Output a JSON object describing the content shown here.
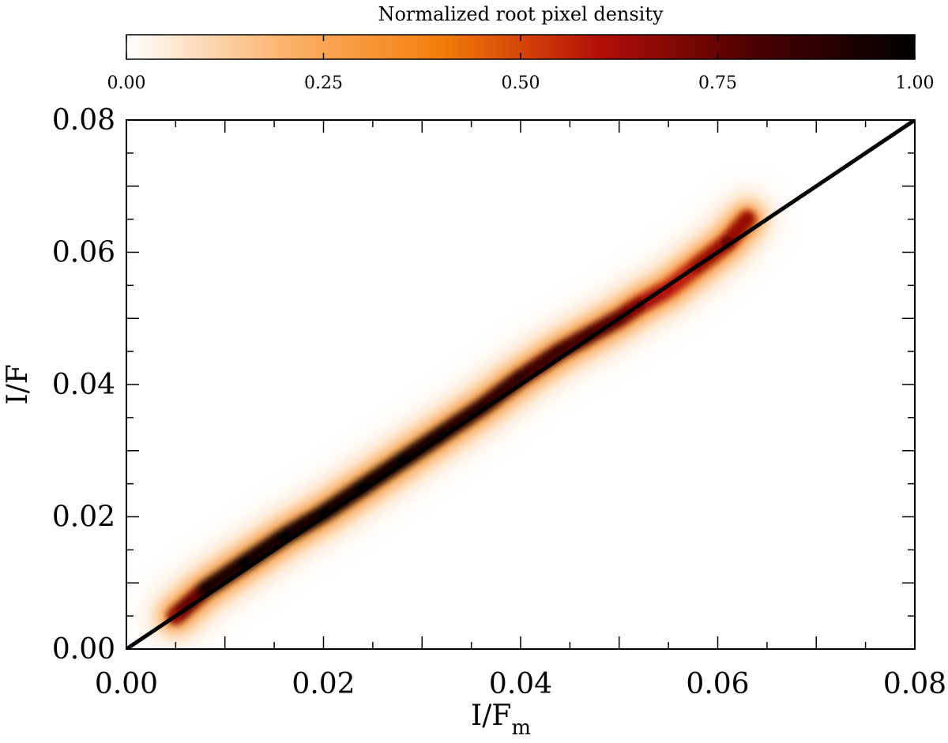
{
  "chart_data": {
    "type": "heatmap",
    "title": "",
    "colorbar": {
      "label": "Normalized root pixel density",
      "range": [
        0,
        1
      ],
      "ticks": [
        0.0,
        0.25,
        0.5,
        0.75,
        1.0
      ],
      "tick_labels": [
        "0.00",
        "0.25",
        "0.50",
        "0.75",
        "1.00"
      ],
      "colors": [
        "#ffffff",
        "#fbb26c",
        "#f47d0a",
        "#b30f08",
        "#4a0000",
        "#000000"
      ],
      "placement": "top"
    },
    "xlabel": "I/F",
    "xlabel_subscript": "m",
    "ylabel": "I/F",
    "xlim": [
      0.0,
      0.08
    ],
    "ylim": [
      0.0,
      0.08
    ],
    "x_ticks": [
      0.0,
      0.02,
      0.04,
      0.06,
      0.08
    ],
    "x_tick_labels": [
      "0.00",
      "0.02",
      "0.04",
      "0.06",
      "0.08"
    ],
    "y_ticks": [
      0.0,
      0.02,
      0.04,
      0.06,
      0.08
    ],
    "y_tick_labels": [
      "0.00",
      "0.02",
      "0.04",
      "0.06",
      "0.08"
    ],
    "reference_line": {
      "type": "one-to-one",
      "x": [
        0.0,
        0.08
      ],
      "y": [
        0.0,
        0.08
      ],
      "color": "#000000"
    },
    "density_ridge": {
      "x": [
        0.005,
        0.008,
        0.012,
        0.016,
        0.02,
        0.024,
        0.028,
        0.032,
        0.036,
        0.04,
        0.044,
        0.047,
        0.05,
        0.052,
        0.055,
        0.058,
        0.061,
        0.063
      ],
      "y": [
        0.005,
        0.009,
        0.013,
        0.017,
        0.0205,
        0.0245,
        0.0285,
        0.0325,
        0.0365,
        0.041,
        0.045,
        0.0475,
        0.05,
        0.052,
        0.0545,
        0.058,
        0.0615,
        0.065
      ],
      "density": [
        0.6,
        0.9,
        0.95,
        0.95,
        0.95,
        0.95,
        0.95,
        0.92,
        0.88,
        0.85,
        0.8,
        0.8,
        0.75,
        0.7,
        0.55,
        0.6,
        0.7,
        0.6
      ]
    },
    "grid": false
  }
}
